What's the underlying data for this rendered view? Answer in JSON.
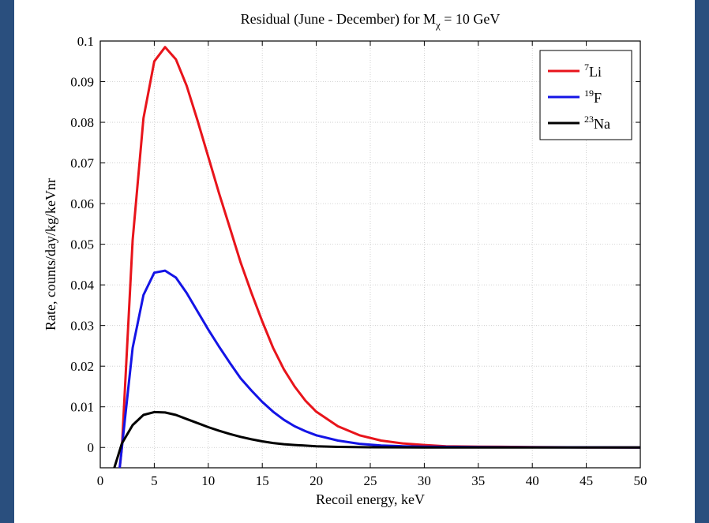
{
  "chart_data": {
    "type": "line",
    "title": "Residual (June - December) for M",
    "title_sub": "χ",
    "title_suffix": " = 10 GeV",
    "xlabel": "Recoil energy, keV",
    "ylabel": "Rate, counts/day/kg/keVnr",
    "xlim": [
      0,
      50
    ],
    "ylim": [
      -0.005,
      0.1
    ],
    "xticks": [
      0,
      5,
      10,
      15,
      20,
      25,
      30,
      35,
      40,
      45,
      50
    ],
    "xtick_labels": [
      "0",
      "5",
      "10",
      "15",
      "20",
      "25",
      "30",
      "35",
      "40",
      "45",
      "50"
    ],
    "yticks": [
      0,
      0.01,
      0.02,
      0.03,
      0.04,
      0.05,
      0.06,
      0.07,
      0.08,
      0.09,
      0.1
    ],
    "ytick_labels": [
      "0",
      "0.01",
      "0.02",
      "0.03",
      "0.04",
      "0.05",
      "0.06",
      "0.07",
      "0.08",
      "0.09",
      "0.1"
    ],
    "grid": true,
    "legend_position": "top-right",
    "series": [
      {
        "name": "Li",
        "name_sup": "7",
        "color": "#e8141b",
        "x": [
          1.8,
          2,
          3,
          4,
          5,
          6,
          7,
          8,
          9,
          10,
          11,
          12,
          13,
          14,
          15,
          16,
          17,
          18,
          19,
          20,
          22,
          24,
          26,
          28,
          30,
          32,
          35,
          40,
          45,
          50
        ],
        "y": [
          -0.005,
          0.0,
          0.051,
          0.081,
          0.095,
          0.0985,
          0.0955,
          0.089,
          0.0805,
          0.0715,
          0.0625,
          0.054,
          0.0455,
          0.038,
          0.031,
          0.0245,
          0.0192,
          0.015,
          0.0115,
          0.0088,
          0.0052,
          0.003,
          0.0017,
          0.001,
          0.0006,
          0.0003,
          0.0002,
          0.0001,
          3e-05,
          0.0
        ]
      },
      {
        "name": "F",
        "name_sup": "19",
        "color": "#1414e6",
        "x": [
          1.8,
          2,
          3,
          4,
          5,
          6,
          7,
          8,
          9,
          10,
          11,
          12,
          13,
          14,
          15,
          16,
          17,
          18,
          19,
          20,
          22,
          24,
          26,
          28,
          30,
          35,
          40,
          45,
          50
        ],
        "y": [
          -0.005,
          0.0,
          0.0245,
          0.0375,
          0.043,
          0.0435,
          0.0418,
          0.038,
          0.0335,
          0.029,
          0.0248,
          0.0208,
          0.017,
          0.014,
          0.0112,
          0.0088,
          0.0068,
          0.0052,
          0.004,
          0.003,
          0.0017,
          0.0009,
          0.0005,
          0.0003,
          0.0002,
          0.0001,
          5e-05,
          2e-05,
          0.0
        ]
      },
      {
        "name": "Na",
        "name_sup": "23",
        "color": "#000000",
        "x": [
          1.3,
          2,
          3,
          4,
          5,
          6,
          7,
          8,
          9,
          10,
          11,
          12,
          13,
          14,
          15,
          16,
          17,
          18,
          20,
          22,
          25,
          30,
          35,
          40,
          45,
          50
        ],
        "y": [
          -0.005,
          0.001,
          0.0055,
          0.008,
          0.0087,
          0.0086,
          0.008,
          0.007,
          0.006,
          0.005,
          0.0041,
          0.0033,
          0.0026,
          0.002,
          0.0015,
          0.0011,
          0.0008,
          0.0006,
          0.0003,
          0.00015,
          5e-05,
          1e-05,
          0.0,
          0.0,
          0.0,
          0.0
        ]
      }
    ]
  }
}
